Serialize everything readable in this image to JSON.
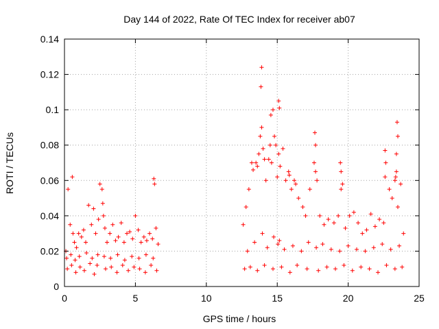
{
  "chart_data": {
    "type": "scatter",
    "title": "Day 144 of 2022, Rate Of TEC Index for receiver ab07",
    "xlabel": "GPS time / hours",
    "ylabel": "ROTI / TECUs",
    "xlim": [
      0,
      25
    ],
    "ylim": [
      0,
      0.14
    ],
    "xticks": [
      0,
      5,
      10,
      15,
      20,
      25
    ],
    "yticks": [
      0,
      0.02,
      0.04,
      0.06,
      0.08,
      0.1,
      0.12,
      0.14
    ],
    "xtick_labels": [
      "0",
      "5",
      "10",
      "15",
      "20",
      "25"
    ],
    "ytick_labels": [
      "0",
      "0.02",
      "0.04",
      "0.06",
      "0.08",
      "0.1",
      "0.12",
      "0.14"
    ],
    "grid": true,
    "marker": "+",
    "color": "#ff0000",
    "series": [
      {
        "name": "",
        "x": [
          0.1,
          0.25,
          0.4,
          0.55,
          0.6,
          0.7,
          0.85,
          1.0,
          1.2,
          1.35,
          1.5,
          1.7,
          1.9,
          2.05,
          2.2,
          2.4,
          2.5,
          2.65,
          2.7,
          2.75,
          2.85,
          3.0,
          3.2,
          3.4,
          3.6,
          3.8,
          4.0,
          4.2,
          4.4,
          4.6,
          4.8,
          5.0,
          5.2,
          5.4,
          5.6,
          5.8,
          6.0,
          6.2,
          6.3,
          6.35,
          6.45,
          6.6,
          0.2,
          0.5,
          0.8,
          1.1,
          1.4,
          1.8,
          2.1,
          2.3,
          2.9,
          3.3,
          3.7,
          4.1,
          4.5,
          4.9,
          5.3,
          5.7,
          6.1,
          6.5,
          0.15,
          0.45,
          0.75,
          1.05,
          1.55,
          1.95,
          2.35,
          2.8,
          3.25,
          3.75,
          4.25,
          4.75,
          5.25,
          5.75,
          6.25,
          12.6,
          12.8,
          13.0,
          13.2,
          13.3,
          13.5,
          13.7,
          13.8,
          13.9,
          14.0,
          14.2,
          14.4,
          14.5,
          14.6,
          14.8,
          14.9,
          15.0,
          15.1,
          15.2,
          15.4,
          15.6,
          15.8,
          16.0,
          16.2,
          16.5,
          16.8,
          17.0,
          17.3,
          17.6,
          17.7,
          17.8,
          18.0,
          18.3,
          18.6,
          19.0,
          19.3,
          19.5,
          19.6,
          19.8,
          20.1,
          20.4,
          20.7,
          21.0,
          21.3,
          21.6,
          21.9,
          22.2,
          22.5,
          22.6,
          22.9,
          23.1,
          23.3,
          23.4,
          23.5,
          23.7,
          23.9,
          12.7,
          13.1,
          13.6,
          14.1,
          14.7,
          15.3,
          15.9,
          16.4,
          17.1,
          17.9,
          18.5,
          19.1,
          19.7,
          20.3,
          20.9,
          21.5,
          22.1,
          22.7,
          23.3,
          23.8,
          12.9,
          13.4,
          13.95,
          14.3,
          14.75,
          15.05,
          15.15,
          15.5,
          16.1,
          16.7,
          17.2,
          17.75,
          18.2,
          18.8,
          19.4,
          20.0,
          20.6,
          21.2,
          21.8,
          22.4,
          23.0,
          23.6,
          13.85,
          13.9,
          14.55,
          14.7,
          15.1,
          15.15,
          17.65,
          17.7,
          19.45,
          19.5,
          22.6,
          22.65,
          23.45,
          23.5,
          23.4,
          23.35,
          13.6,
          14.1,
          15.85,
          16.3
        ],
        "y": [
          0.02,
          0.055,
          0.035,
          0.062,
          0.03,
          0.025,
          0.022,
          0.03,
          0.028,
          0.032,
          0.025,
          0.046,
          0.035,
          0.044,
          0.03,
          0.038,
          0.058,
          0.055,
          0.047,
          0.04,
          0.033,
          0.025,
          0.03,
          0.035,
          0.026,
          0.028,
          0.036,
          0.025,
          0.03,
          0.031,
          0.027,
          0.04,
          0.032,
          0.025,
          0.028,
          0.026,
          0.03,
          0.027,
          0.061,
          0.058,
          0.033,
          0.024,
          0.01,
          0.012,
          0.008,
          0.011,
          0.009,
          0.013,
          0.007,
          0.012,
          0.01,
          0.011,
          0.008,
          0.012,
          0.009,
          0.011,
          0.01,
          0.008,
          0.012,
          0.009,
          0.016,
          0.018,
          0.015,
          0.017,
          0.019,
          0.016,
          0.018,
          0.017,
          0.016,
          0.018,
          0.015,
          0.017,
          0.016,
          0.018,
          0.016,
          0.035,
          0.045,
          0.055,
          0.07,
          0.066,
          0.07,
          0.075,
          0.085,
          0.09,
          0.078,
          0.06,
          0.072,
          0.08,
          0.07,
          0.085,
          0.08,
          0.062,
          0.075,
          0.068,
          0.078,
          0.06,
          0.065,
          0.055,
          0.06,
          0.05,
          0.045,
          0.04,
          0.055,
          0.07,
          0.065,
          0.06,
          0.04,
          0.035,
          0.038,
          0.036,
          0.04,
          0.055,
          0.058,
          0.033,
          0.04,
          0.042,
          0.036,
          0.03,
          0.032,
          0.041,
          0.034,
          0.038,
          0.036,
          0.062,
          0.055,
          0.05,
          0.06,
          0.075,
          0.045,
          0.058,
          0.03,
          0.01,
          0.011,
          0.009,
          0.012,
          0.01,
          0.011,
          0.008,
          0.012,
          0.01,
          0.009,
          0.011,
          0.01,
          0.012,
          0.009,
          0.011,
          0.01,
          0.008,
          0.012,
          0.01,
          0.011,
          0.02,
          0.025,
          0.03,
          0.022,
          0.028,
          0.024,
          0.026,
          0.021,
          0.023,
          0.02,
          0.025,
          0.022,
          0.024,
          0.021,
          0.02,
          0.023,
          0.021,
          0.02,
          0.022,
          0.024,
          0.021,
          0.023,
          0.113,
          0.124,
          0.097,
          0.1,
          0.105,
          0.101,
          0.087,
          0.08,
          0.07,
          0.065,
          0.077,
          0.07,
          0.093,
          0.085,
          0.065,
          0.062,
          0.068,
          0.072,
          0.063,
          0.058
        ]
      }
    ]
  }
}
